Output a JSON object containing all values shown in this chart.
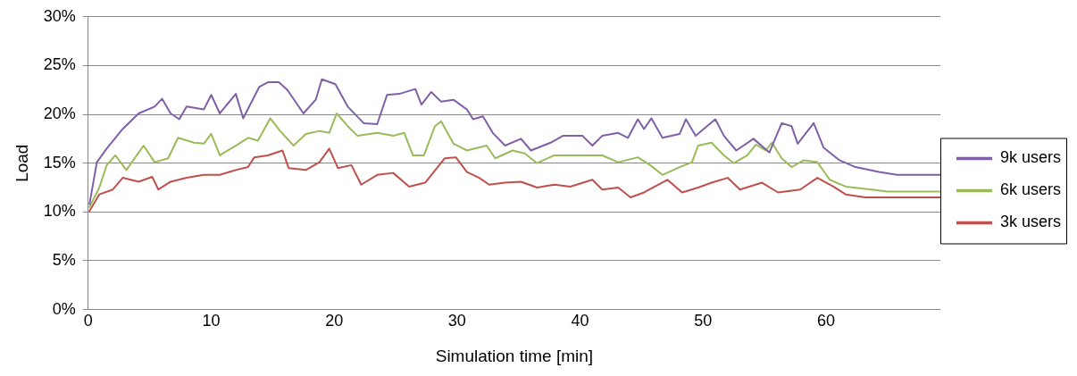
{
  "chart_data": {
    "type": "line",
    "xlabel": "Simulation time [min]",
    "ylabel": "Load",
    "xlim": [
      0,
      69.3
    ],
    "xticks": [
      0,
      10,
      20,
      30,
      40,
      50,
      60
    ],
    "ylim": [
      0,
      30
    ],
    "yticks": [
      {
        "value": 0,
        "label": "0%"
      },
      {
        "value": 5,
        "label": "5%"
      },
      {
        "value": 10,
        "label": "10%"
      },
      {
        "value": 15,
        "label": "15%"
      },
      {
        "value": 20,
        "label": "20%"
      },
      {
        "value": 25,
        "label": "25%"
      },
      {
        "value": 30,
        "label": "30%"
      }
    ],
    "grid": "y",
    "legend": "right",
    "marker": "none",
    "line_style": "solid",
    "series": [
      {
        "name": "9k users",
        "color": "#7f60a8",
        "x": [
          0.1,
          0.7,
          1.5,
          2.8,
          4.1,
          5.4,
          6.0,
          6.7,
          7.4,
          8.0,
          9.4,
          10.0,
          10.7,
          12.0,
          12.6,
          13.9,
          14.6,
          15.5,
          16.2,
          17.5,
          18.5,
          19.0,
          20.1,
          21.1,
          22.4,
          23.5,
          24.3,
          25.3,
          26.6,
          27.1,
          27.9,
          28.7,
          29.7,
          30.8,
          31.3,
          32.1,
          32.9,
          33.9,
          35.2,
          36.0,
          37.6,
          38.6,
          40.2,
          41.0,
          41.8,
          43.1,
          43.9,
          44.7,
          45.2,
          45.8,
          46.7,
          48.1,
          48.6,
          49.4,
          51.0,
          51.7,
          52.7,
          54.1,
          55.4,
          56.4,
          57.2,
          57.7,
          59.0,
          59.8,
          61.1,
          62.4,
          64.3,
          65.8,
          69.3
        ],
        "values": [
          10.8,
          15.1,
          16.5,
          18.5,
          20.1,
          20.8,
          21.6,
          20.1,
          19.5,
          20.8,
          20.5,
          22.0,
          20.1,
          22.1,
          19.6,
          22.8,
          23.3,
          23.3,
          22.5,
          20.1,
          21.5,
          23.6,
          23.1,
          20.8,
          19.1,
          19.0,
          22.0,
          22.1,
          22.6,
          21.0,
          22.3,
          21.3,
          21.5,
          20.5,
          19.5,
          19.8,
          18.1,
          16.8,
          17.5,
          16.3,
          17.1,
          17.8,
          17.8,
          16.8,
          17.8,
          18.1,
          17.6,
          19.5,
          18.5,
          19.6,
          17.6,
          18.0,
          19.5,
          17.8,
          19.5,
          17.8,
          16.3,
          17.5,
          16.1,
          19.1,
          18.8,
          17.0,
          19.1,
          16.6,
          15.3,
          14.6,
          14.1,
          13.8,
          13.8
        ]
      },
      {
        "name": "6k users",
        "color": "#9bbb59",
        "x": [
          0.1,
          0.9,
          1.5,
          2.2,
          3.1,
          4.5,
          5.4,
          6.5,
          7.3,
          8.6,
          9.4,
          10.0,
          10.7,
          12.0,
          13.0,
          13.8,
          14.8,
          15.6,
          16.7,
          17.7,
          18.8,
          19.6,
          20.2,
          21.1,
          21.9,
          23.5,
          24.8,
          25.7,
          26.4,
          27.3,
          28.2,
          28.7,
          29.7,
          30.8,
          32.4,
          33.1,
          34.5,
          35.5,
          36.5,
          37.9,
          39.2,
          41.8,
          43.1,
          44.7,
          45.7,
          46.7,
          48.1,
          49.1,
          49.6,
          50.7,
          51.7,
          52.5,
          53.6,
          54.3,
          55.1,
          55.6,
          56.4,
          57.2,
          58.2,
          59.3,
          60.3,
          61.6,
          63.7,
          65.0,
          69.3
        ],
        "values": [
          10.5,
          12.5,
          14.8,
          15.8,
          14.3,
          16.8,
          15.1,
          15.5,
          17.6,
          17.1,
          17.0,
          18.0,
          15.8,
          16.8,
          17.6,
          17.3,
          19.6,
          18.3,
          16.8,
          18.0,
          18.3,
          18.1,
          20.1,
          18.8,
          17.8,
          18.1,
          17.8,
          18.1,
          15.8,
          15.8,
          18.8,
          19.3,
          17.0,
          16.3,
          16.8,
          15.5,
          16.3,
          16.0,
          15.0,
          15.8,
          15.8,
          15.8,
          15.1,
          15.6,
          14.8,
          13.8,
          14.6,
          15.1,
          16.8,
          17.1,
          15.8,
          15.0,
          15.8,
          16.9,
          16.3,
          17.1,
          15.5,
          14.6,
          15.3,
          15.1,
          13.3,
          12.6,
          12.3,
          12.1,
          12.1
        ]
      },
      {
        "name": "3k users",
        "color": "#c0504d",
        "x": [
          0.1,
          0.9,
          2.0,
          2.8,
          4.1,
          5.2,
          5.7,
          6.7,
          8.0,
          9.4,
          10.7,
          12.0,
          13.0,
          13.5,
          14.6,
          15.8,
          16.3,
          17.7,
          18.8,
          19.6,
          20.3,
          21.4,
          22.2,
          23.5,
          24.8,
          26.1,
          27.4,
          29.0,
          29.9,
          30.8,
          31.8,
          32.6,
          33.9,
          35.2,
          36.5,
          37.9,
          39.2,
          41.0,
          41.8,
          43.1,
          44.1,
          45.2,
          47.1,
          48.3,
          49.6,
          50.7,
          52.0,
          53.0,
          54.8,
          56.1,
          57.9,
          59.3,
          60.6,
          61.6,
          63.2,
          69.3
        ],
        "values": [
          10.1,
          11.8,
          12.3,
          13.5,
          13.1,
          13.6,
          12.3,
          13.1,
          13.5,
          13.8,
          13.8,
          14.3,
          14.6,
          15.6,
          15.8,
          16.3,
          14.5,
          14.3,
          15.1,
          16.5,
          14.5,
          14.8,
          12.8,
          13.8,
          14.0,
          12.6,
          13.0,
          15.5,
          15.6,
          14.1,
          13.5,
          12.8,
          13.0,
          13.1,
          12.5,
          12.8,
          12.6,
          13.3,
          12.3,
          12.5,
          11.5,
          12.0,
          13.3,
          12.0,
          12.5,
          13.0,
          13.5,
          12.3,
          13.0,
          12.0,
          12.3,
          13.5,
          12.6,
          11.8,
          11.5,
          11.5
        ]
      }
    ]
  }
}
